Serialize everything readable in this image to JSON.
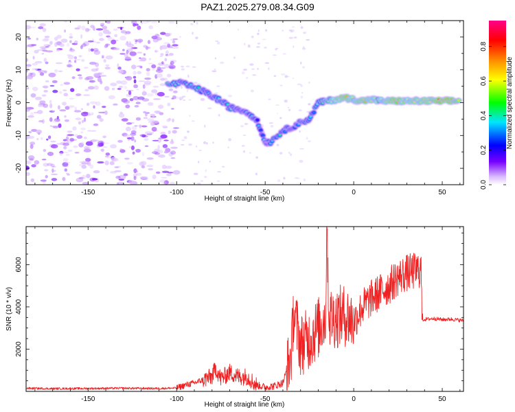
{
  "figure_title": "PAZ1.2025.279.08.34.G09",
  "chart_data": [
    {
      "type": "heatmap",
      "name": "spectrogram",
      "xlabel": "Height of straight line (km)",
      "ylabel": "Frequency (Hz)",
      "xlim": [
        -185,
        62
      ],
      "ylim": [
        -25,
        25
      ],
      "x_ticks": [
        -150,
        -100,
        -50,
        0,
        50
      ],
      "x_tick_labels": [
        "-150",
        "-100",
        "-50",
        "0",
        "50"
      ],
      "y_ticks": [
        -20,
        -10,
        0,
        10,
        20
      ],
      "y_tick_labels": [
        "-20",
        "-10",
        "0",
        "10",
        "20"
      ],
      "colorbar": {
        "label": "Normalized spectral amplitude",
        "range": [
          0,
          0.95
        ],
        "ticks": [
          0.0,
          0.2,
          0.4,
          0.6,
          0.8
        ],
        "tick_labels": [
          "0.0",
          "0.2",
          "0.4",
          "0.6",
          "0.8"
        ],
        "colormap": [
          "#ffffff",
          "#d9b8ff",
          "#7700ff",
          "#0000ff",
          "#00e5ff",
          "#00ff00",
          "#ffff00",
          "#ff8800",
          "#ff0000",
          "#ff0088"
        ]
      },
      "ridge_points": [
        {
          "x": -105,
          "y": 5.5,
          "a": 0.45
        },
        {
          "x": -98,
          "y": 6,
          "a": 0.35
        },
        {
          "x": -92,
          "y": 5,
          "a": 0.4
        },
        {
          "x": -85,
          "y": 3.5,
          "a": 0.35
        },
        {
          "x": -80,
          "y": 2,
          "a": 0.3
        },
        {
          "x": -75,
          "y": 0.5,
          "a": 0.4
        },
        {
          "x": -70,
          "y": -1.5,
          "a": 0.35
        },
        {
          "x": -65,
          "y": -2,
          "a": 0.3
        },
        {
          "x": -60,
          "y": -3,
          "a": 0.35
        },
        {
          "x": -55,
          "y": -5,
          "a": 0.3
        },
        {
          "x": -50,
          "y": -12,
          "a": 0.3
        },
        {
          "x": -47,
          "y": -12,
          "a": 0.35
        },
        {
          "x": -40,
          "y": -8.5,
          "a": 0.35
        },
        {
          "x": -35,
          "y": -7.5,
          "a": 0.3
        },
        {
          "x": -30,
          "y": -6,
          "a": 0.4
        },
        {
          "x": -25,
          "y": -5,
          "a": 0.3
        },
        {
          "x": -20,
          "y": 0,
          "a": 0.4
        },
        {
          "x": -15,
          "y": 0.5,
          "a": 0.5
        },
        {
          "x": -10,
          "y": 1,
          "a": 0.6
        },
        {
          "x": -5,
          "y": 1.5,
          "a": 0.75
        },
        {
          "x": 0,
          "y": 1,
          "a": 0.6
        },
        {
          "x": 5,
          "y": 0.5,
          "a": 0.75
        },
        {
          "x": 10,
          "y": 1,
          "a": 0.6
        },
        {
          "x": 15,
          "y": 0.5,
          "a": 0.55
        },
        {
          "x": 20,
          "y": 0.5,
          "a": 0.65
        },
        {
          "x": 25,
          "y": 0.5,
          "a": 0.75
        },
        {
          "x": 30,
          "y": 0.5,
          "a": 0.6
        },
        {
          "x": 35,
          "y": 0.5,
          "a": 0.65
        },
        {
          "x": 40,
          "y": 0.5,
          "a": 0.65
        },
        {
          "x": 45,
          "y": 0.5,
          "a": 0.7
        },
        {
          "x": 50,
          "y": 0.5,
          "a": 0.85
        },
        {
          "x": 55,
          "y": 0.5,
          "a": 0.75
        },
        {
          "x": 60,
          "y": 0.5,
          "a": 0.65
        }
      ]
    },
    {
      "type": "line",
      "name": "snr",
      "xlabel": "Height of straight line (km)",
      "ylabel": "SNR (10 * v/v)",
      "xlim": [
        -185,
        62
      ],
      "ylim": [
        0,
        7800
      ],
      "x_ticks": [
        -150,
        -100,
        -50,
        0,
        50
      ],
      "x_tick_labels": [
        "-150",
        "-100",
        "-50",
        "0",
        "50"
      ],
      "y_ticks": [
        2000,
        4000,
        6000
      ],
      "y_tick_labels": [
        "2000",
        "4000",
        "6000"
      ],
      "color": "#ee2222",
      "series": [
        {
          "name": "SNR",
          "x": [
            -185,
            -170,
            -150,
            -130,
            -110,
            -100,
            -95,
            -90,
            -85,
            -80,
            -78,
            -75,
            -70,
            -65,
            -60,
            -55,
            -50,
            -45,
            -40,
            -36,
            -35,
            -34,
            -30,
            -25,
            -20,
            -16,
            -15,
            -14,
            -10,
            -5,
            0,
            5,
            10,
            15,
            20,
            25,
            30,
            35,
            38,
            39,
            45,
            50,
            55,
            62
          ],
          "y": [
            150,
            130,
            140,
            150,
            140,
            160,
            300,
            400,
            550,
            700,
            1100,
            600,
            900,
            700,
            700,
            300,
            200,
            250,
            400,
            1500,
            2000,
            3800,
            2200,
            2500,
            3000,
            3500,
            7700,
            3500,
            3500,
            3600,
            3300,
            4000,
            4400,
            4700,
            5000,
            5400,
            5600,
            5700,
            5800,
            3400,
            3450,
            3400,
            3420,
            3350
          ]
        }
      ]
    }
  ]
}
